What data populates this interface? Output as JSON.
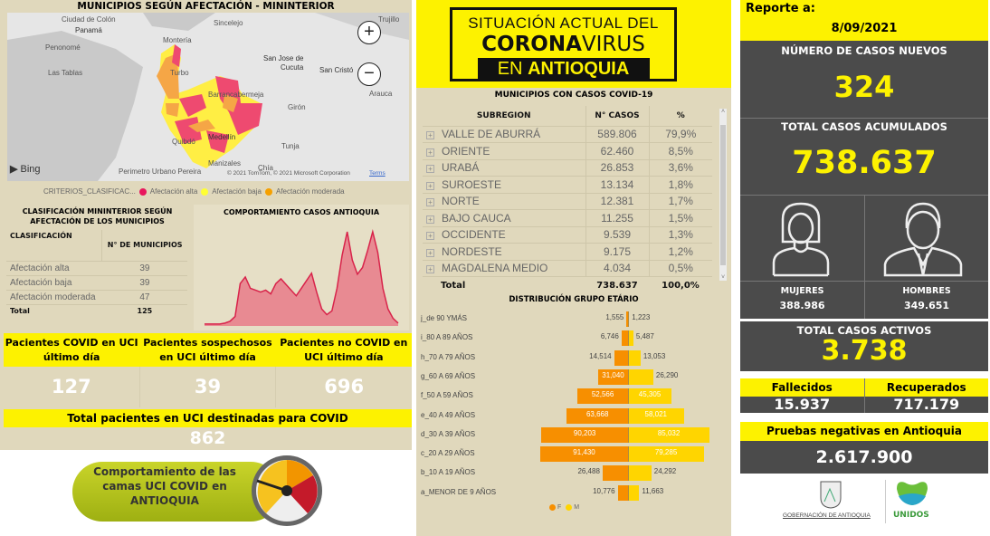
{
  "map": {
    "title": "MUNICIPIOS SEGÚN AFECTACIÓN - MININTERIOR",
    "labels": [
      "Ciudad de Colón",
      "Panamá",
      "Penonomé",
      "Las Tablas",
      "Montería",
      "Sincelejo",
      "Turbo",
      "San Jose de",
      "Cucuta",
      "San Cristó",
      "Trujillo",
      "Arauca",
      "Girón",
      "Barrancabermeja",
      "Quibdó",
      "Medellín",
      "Tunja",
      "Manizales",
      "Perimetro Urbano Pereira",
      "Chía"
    ],
    "bing": "Bing",
    "copyright": "© 2021 TomTom, © 2021 Microsoft Corporation",
    "terms": "Terms",
    "zoom_in": "+",
    "zoom_out": "−"
  },
  "legend": {
    "field": "CRITERIOS_CLASIFICAC...",
    "items": [
      {
        "label": "Afectación alta",
        "color": "#e8175d"
      },
      {
        "label": "Afectación baja",
        "color": "#ffff33"
      },
      {
        "label": "Afectación moderada",
        "color": "#f5a000"
      }
    ]
  },
  "classification": {
    "title": "CLASIFICACIÓN MININTERIOR SEGÚN AFECTACIÓN DE LOS MUNICIPIOS",
    "headers": [
      "CLASIFICACIÓN",
      "N° DE MUNICIPIOS"
    ],
    "rows": [
      [
        "Afectación alta",
        "39"
      ],
      [
        "Afectación baja",
        "39"
      ],
      [
        "Afectación moderada",
        "47"
      ]
    ],
    "total": [
      "Total",
      "125"
    ]
  },
  "trend": {
    "title": "COMPORTAMIENTO CASOS ANTIOQUIA"
  },
  "uci": {
    "headers": [
      "Pacientes COVID en UCI último día",
      "Pacientes sospechosos en UCI último día",
      "Pacientes no COVID en UCI último día"
    ],
    "values": [
      "127",
      "39",
      "696"
    ],
    "total_label": "Total pacientes en UCI destinadas para COVID",
    "total_value": "862",
    "banner": "Comportamiento de las camas UCI COVID en ANTIOQUIA"
  },
  "logo": {
    "line1": "SITUACIÓN ACTUAL DEL",
    "line2a": "CORONA",
    "line2b": "VIRUS",
    "line3a": "EN ",
    "line3b": "ANTIOQUIA"
  },
  "subregions": {
    "title": "MUNICIPIOS CON CASOS COVID-19",
    "headers": [
      "SUBREGION",
      "N° CASOS",
      "%"
    ],
    "rows": [
      [
        "VALLE DE ABURRÁ",
        "589.806",
        "79,9%"
      ],
      [
        "ORIENTE",
        "62.460",
        "8,5%"
      ],
      [
        "URABÁ",
        "26.853",
        "3,6%"
      ],
      [
        "SUROESTE",
        "13.134",
        "1,8%"
      ],
      [
        "NORTE",
        "12.381",
        "1,7%"
      ],
      [
        "BAJO CAUCA",
        "11.255",
        "1,5%"
      ],
      [
        "OCCIDENTE",
        "9.539",
        "1,3%"
      ],
      [
        "NORDESTE",
        "9.175",
        "1,2%"
      ],
      [
        "MAGDALENA MEDIO",
        "4.034",
        "0,5%"
      ]
    ],
    "total": [
      "Total",
      "738.637",
      "100,0%"
    ]
  },
  "chart_data": [
    {
      "type": "bar",
      "title": "DISTRIBUCIÓN GRUPO ETÁRIO",
      "categories": [
        "j_de 90 YMÁS",
        "i_80 A 89 AÑOS",
        "h_70 A 79 AÑOS",
        "g_60 A 69 AÑOS",
        "f_50 A 59 AÑOS",
        "e_40 A 49 AÑOS",
        "d_30 A 39 AÑOS",
        "c_20 A 29 AÑOS",
        "b_10 A 19 AÑOS",
        "a_MENOR DE 9 AÑOS"
      ],
      "series": [
        {
          "name": "F",
          "color": "#f78f00",
          "values": [
            1555,
            6746,
            14514,
            31040,
            52566,
            63668,
            90203,
            91430,
            26488,
            10776
          ],
          "labels": [
            "1,555",
            "6,746",
            "14,514",
            "31,040",
            "52,566",
            "63,668",
            "90,203",
            "91,430",
            "26,488",
            "10,776"
          ]
        },
        {
          "name": "M",
          "color": "#ffd500",
          "values": [
            1223,
            5487,
            13053,
            26290,
            45305,
            58021,
            85032,
            79285,
            24292,
            11663
          ],
          "labels": [
            "1,223",
            "5,487",
            "13,053",
            "26,290",
            "45,305",
            "58,021",
            "85,032",
            "79,285",
            "24,292",
            "11,663"
          ]
        }
      ]
    },
    {
      "type": "area",
      "title": "COMPORTAMIENTO CASOS ANTIOQUIA",
      "values": [
        2,
        2,
        2,
        2,
        3,
        5,
        10,
        45,
        52,
        40,
        38,
        36,
        38,
        34,
        45,
        50,
        44,
        38,
        32,
        40,
        48,
        56,
        36,
        18,
        12,
        16,
        40,
        75,
        100,
        70,
        55,
        62,
        80,
        100,
        78,
        40,
        18,
        8,
        3
      ]
    }
  ],
  "report": {
    "label": "Reporte a:",
    "date": "8/09/2021"
  },
  "stats": {
    "new_label": "NÚMERO DE CASOS NUEVOS",
    "new": "324",
    "total_label": "TOTAL CASOS ACUMULADOS",
    "total": "738.637",
    "women_label": "MUJERES",
    "women": "388.986",
    "men_label": "HOMBRES",
    "men": "349.651",
    "active_label": "TOTAL CASOS ACTIVOS",
    "active": "3.738",
    "deaths_label": "Fallecidos",
    "deaths": "15.937",
    "recovered_label": "Recuperados",
    "recovered": "717.179",
    "neg_label": "Pruebas negativas en Antioquia",
    "neg": "2.617.900"
  },
  "footer": {
    "gov": "GOBERNACIÓN DE ANTIOQUIA",
    "unidos": "UNIDOS"
  }
}
